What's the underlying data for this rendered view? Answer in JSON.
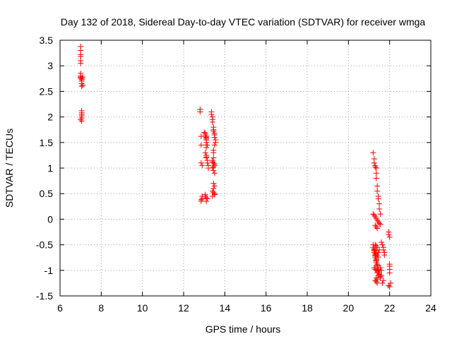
{
  "chart_data": {
    "type": "scatter",
    "title": "Day 132 of 2018, Sidereal Day-to-day VTEC variation (SDTVAR) for receiver wmga",
    "xlabel": "GPS time / hours",
    "ylabel": "SDTVAR / TECUs",
    "xlim": [
      6,
      24
    ],
    "ylim": [
      -1.5,
      3.5
    ],
    "xticks": [
      6,
      8,
      10,
      12,
      14,
      16,
      18,
      20,
      22,
      24
    ],
    "yticks": [
      -1.5,
      -1,
      -0.5,
      0,
      0.5,
      1,
      1.5,
      2,
      2.5,
      3,
      3.5
    ],
    "grid": true,
    "marker": "+",
    "color": "#ff0000",
    "series": [
      {
        "name": "SDTVAR",
        "x": [
          7.0,
          7.0,
          7.0,
          7.0,
          7.0,
          7.0,
          7.0,
          7.0,
          7.0,
          7.0,
          7.05,
          7.05,
          7.05,
          7.05,
          7.05,
          7.1,
          7.1,
          7.05,
          7.05,
          7.05,
          7.05,
          7.05,
          7.0,
          7.05,
          12.8,
          12.8,
          12.85,
          12.85,
          12.85,
          12.9,
          12.9,
          12.9,
          12.85,
          12.85,
          13.0,
          13.05,
          13.05,
          13.05,
          13.1,
          13.1,
          13.1,
          13.1,
          13.1,
          13.1,
          13.1,
          13.1,
          13.1,
          13.15,
          13.15,
          13.2,
          13.2,
          13.05,
          13.05,
          13.1,
          13.15,
          13.1,
          13.05,
          13.1,
          13.1,
          13.15,
          13.35,
          13.35,
          13.4,
          13.4,
          13.4,
          13.45,
          13.45,
          13.45,
          13.5,
          13.5,
          13.5,
          13.55,
          13.55,
          13.5,
          13.45,
          13.4,
          13.4,
          13.45,
          13.5,
          13.5,
          13.45,
          13.4,
          13.45,
          13.5,
          13.45,
          13.5,
          13.45,
          13.4,
          13.45,
          13.5,
          13.5,
          13.4,
          13.45,
          13.45,
          21.2,
          21.25,
          21.25,
          21.3,
          21.3,
          21.35,
          21.35,
          21.35,
          21.4,
          21.4,
          21.45,
          21.45,
          21.5,
          21.5,
          21.55,
          21.2,
          21.2,
          21.25,
          21.25,
          21.25,
          21.3,
          21.3,
          21.3,
          21.3,
          21.35,
          21.35,
          21.35,
          21.35,
          21.4,
          21.4,
          21.4,
          21.4,
          21.45,
          21.45,
          21.45,
          21.5,
          21.5,
          21.5,
          21.55,
          21.55,
          21.25,
          21.3,
          21.35,
          21.4,
          21.45,
          21.3,
          21.35,
          21.4,
          21.25,
          21.3,
          21.35,
          21.4,
          21.45,
          21.35,
          21.4,
          21.3,
          21.35,
          21.4,
          21.5,
          21.45,
          21.2,
          21.25,
          21.3,
          21.35,
          21.4,
          21.45,
          21.5,
          21.55,
          21.3,
          21.35,
          21.4,
          21.6,
          21.65,
          21.7,
          21.7,
          21.75,
          21.75,
          21.7,
          21.65,
          21.6,
          21.6,
          21.55,
          21.95,
          21.95,
          22.0,
          22.0,
          22.0,
          22.0,
          22.0,
          22.05,
          21.95,
          22.0
        ],
        "y": [
          3.38,
          3.3,
          3.22,
          3.18,
          3.1,
          3.05,
          2.85,
          2.8,
          2.78,
          2.76,
          2.75,
          2.73,
          2.7,
          2.65,
          2.6,
          2.62,
          2.78,
          2.12,
          2.08,
          2.05,
          2.02,
          1.98,
          1.95,
          1.92,
          2.15,
          2.1,
          1.62,
          1.45,
          1.1,
          1.05,
          0.45,
          0.4,
          0.38,
          0.35,
          1.7,
          1.68,
          1.65,
          1.62,
          1.6,
          1.58,
          1.55,
          1.5,
          1.45,
          1.4,
          1.25,
          1.22,
          1.2,
          1.15,
          1.1,
          1.05,
          1.0,
          0.48,
          0.45,
          0.42,
          0.4,
          0.35,
          1.3,
          1.62,
          1.55,
          1.45,
          2.1,
          2.05,
          2.0,
          1.95,
          1.9,
          1.8,
          1.75,
          1.72,
          1.68,
          1.65,
          1.6,
          1.55,
          1.5,
          1.45,
          1.2,
          1.15,
          1.12,
          1.1,
          1.08,
          1.05,
          1.02,
          1.0,
          0.95,
          0.9,
          0.7,
          0.65,
          0.6,
          0.55,
          0.52,
          0.5,
          0.48,
          0.45,
          1.35,
          1.3,
          1.3,
          1.18,
          1.1,
          1.05,
          1.02,
          1.0,
          0.9,
          0.8,
          0.65,
          0.55,
          0.45,
          0.4,
          0.3,
          0.2,
          0.1,
          -0.5,
          -0.55,
          -0.6,
          -0.62,
          -0.65,
          -0.68,
          -0.7,
          -0.72,
          -0.75,
          -0.78,
          -0.8,
          -0.82,
          -0.85,
          -0.88,
          -0.9,
          -0.92,
          -0.95,
          -0.98,
          -1.0,
          -1.02,
          -1.05,
          -1.08,
          -1.1,
          -1.12,
          -1.15,
          -0.58,
          -0.62,
          -0.66,
          -0.7,
          -0.74,
          -0.5,
          -0.52,
          -0.55,
          -0.95,
          -0.98,
          -1.0,
          -1.05,
          -1.1,
          -1.15,
          -1.18,
          -1.2,
          -1.22,
          -1.25,
          -0.6,
          -0.65,
          0.1,
          0.08,
          0.05,
          0.02,
          -0.02,
          -0.05,
          -0.08,
          -0.1,
          -0.12,
          -0.15,
          -0.18,
          -0.45,
          -0.5,
          -0.55,
          -0.6,
          -0.65,
          -0.7,
          -1.2,
          -1.25,
          -1.1,
          -1.0,
          -0.95,
          -0.25,
          -0.3,
          -0.35,
          -0.88,
          -0.92,
          -0.98,
          -1.05,
          -1.25,
          -1.3,
          -1.32
        ]
      }
    ]
  }
}
